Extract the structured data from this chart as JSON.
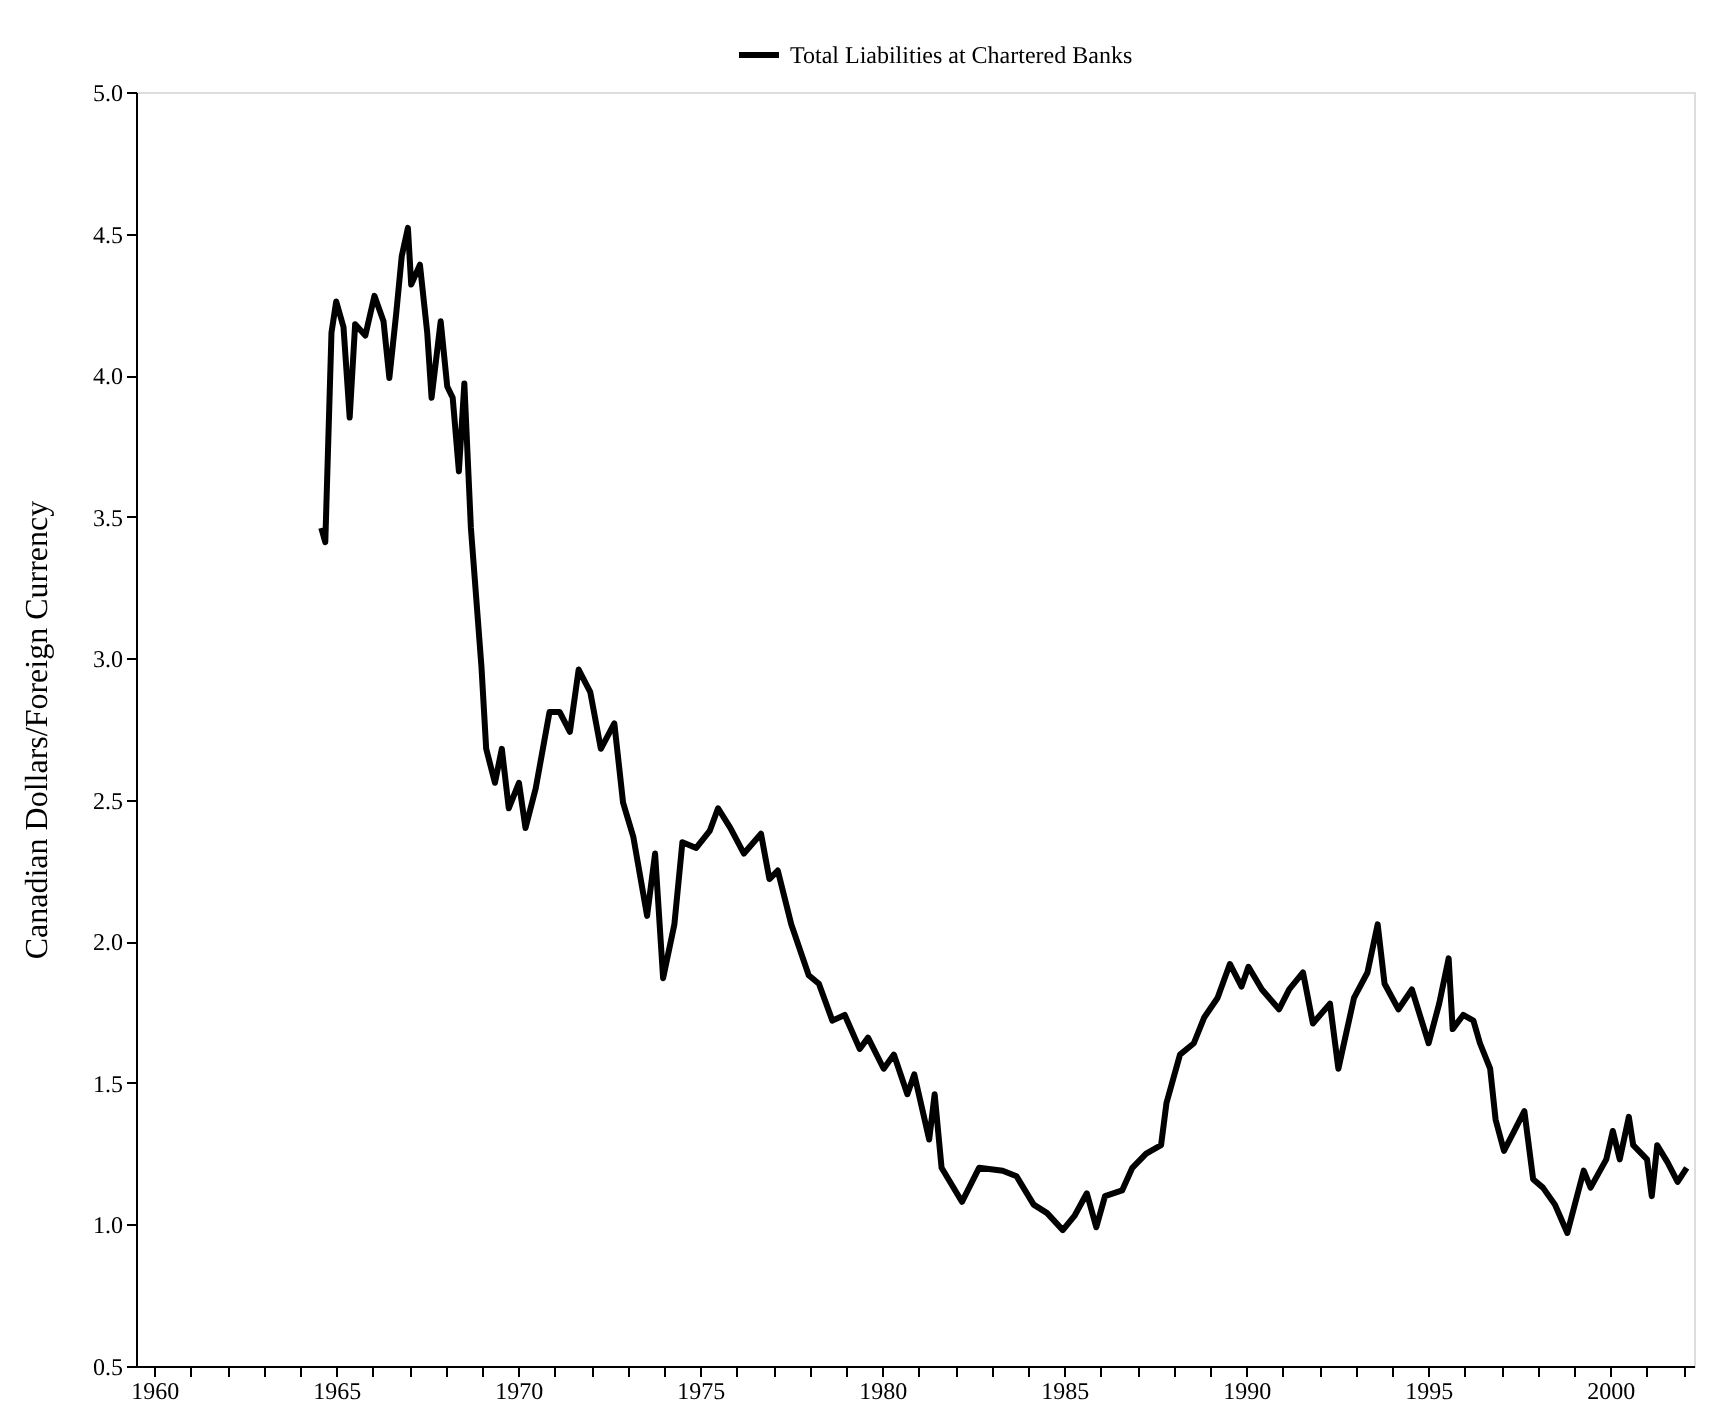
{
  "chart_data": {
    "type": "line",
    "ylabel": "Canadian Dollars/Foreign Currency",
    "legend": "top",
    "grid": false,
    "marker": "none",
    "line_style": "solid",
    "xlim": [
      1959.5,
      2002.3
    ],
    "ylim": [
      0.5,
      5.0
    ],
    "xticks": [
      1960,
      {
        "value": 1961,
        "label": null
      },
      {
        "value": 1962,
        "label": null
      },
      {
        "value": 1963,
        "label": null
      },
      {
        "value": 1964,
        "label": null
      },
      1965,
      {
        "value": 1966,
        "label": null
      },
      {
        "value": 1967,
        "label": null
      },
      {
        "value": 1968,
        "label": null
      },
      {
        "value": 1969,
        "label": null
      },
      1970,
      {
        "value": 1971,
        "label": null
      },
      {
        "value": 1972,
        "label": null
      },
      {
        "value": 1973,
        "label": null
      },
      {
        "value": 1974,
        "label": null
      },
      1975,
      {
        "value": 1976,
        "label": null
      },
      {
        "value": 1977,
        "label": null
      },
      {
        "value": 1978,
        "label": null
      },
      {
        "value": 1979,
        "label": null
      },
      1980,
      {
        "value": 1981,
        "label": null
      },
      {
        "value": 1982,
        "label": null
      },
      {
        "value": 1983,
        "label": null
      },
      {
        "value": 1984,
        "label": null
      },
      1985,
      {
        "value": 1986,
        "label": null
      },
      {
        "value": 1987,
        "label": null
      },
      {
        "value": 1988,
        "label": null
      },
      {
        "value": 1989,
        "label": null
      },
      1990,
      {
        "value": 1991,
        "label": null
      },
      {
        "value": 1992,
        "label": null
      },
      {
        "value": 1993,
        "label": null
      },
      {
        "value": 1994,
        "label": null
      },
      1995,
      {
        "value": 1996,
        "label": null
      },
      {
        "value": 1997,
        "label": null
      },
      {
        "value": 1998,
        "label": null
      },
      {
        "value": 1999,
        "label": null
      },
      2000,
      {
        "value": 2001,
        "label": null
      },
      {
        "value": 2002,
        "label": null
      }
    ],
    "yticks": [
      0.5,
      {
        "value": 1,
        "label": "1.0"
      },
      1.5,
      {
        "value": 2,
        "label": "2.0"
      },
      2.5,
      {
        "value": 3,
        "label": "3.0"
      },
      3.5,
      {
        "value": 4,
        "label": "4.0"
      },
      4.5,
      {
        "value": 5,
        "label": "5.0"
      }
    ],
    "x": [
      1964.59,
      1964.7,
      1964.87,
      1965.0,
      1965.2,
      1965.37,
      1965.52,
      1965.8,
      1966.05,
      1966.3,
      1966.46,
      1966.65,
      1966.8,
      1966.97,
      1967.06,
      1967.3,
      1967.5,
      1967.62,
      1967.87,
      1968.05,
      1968.2,
      1968.37,
      1968.52,
      1968.7,
      1968.99,
      1969.12,
      1969.36,
      1969.55,
      1969.74,
      1970.02,
      1970.2,
      1970.48,
      1970.86,
      1971.14,
      1971.42,
      1971.66,
      1971.98,
      1972.27,
      1972.64,
      1972.88,
      1973.16,
      1973.54,
      1973.76,
      1973.98,
      1974.29,
      1974.51,
      1974.89,
      1975.26,
      1975.49,
      1975.83,
      1976.2,
      1976.67,
      1976.9,
      1977.13,
      1977.5,
      1977.98,
      1978.26,
      1978.63,
      1978.97,
      1979.38,
      1979.61,
      1980.04,
      1980.32,
      1980.69,
      1980.88,
      1981.29,
      1981.44,
      1981.63,
      1982.19,
      1982.66,
      1983.31,
      1983.69,
      1984.16,
      1984.53,
      1984.96,
      1985.28,
      1985.62,
      1985.88,
      1986.12,
      1986.59,
      1986.87,
      1987.25,
      1987.66,
      1987.81,
      1988.18,
      1988.56,
      1988.84,
      1989.21,
      1989.55,
      1989.87,
      1990.06,
      1990.43,
      1990.9,
      1991.18,
      1991.56,
      1991.83,
      1992.3,
      1992.53,
      1992.96,
      1993.33,
      1993.61,
      1993.8,
      1994.18,
      1994.55,
      1995.01,
      1995.3,
      1995.56,
      1995.67,
      1995.96,
      1996.24,
      1996.42,
      1996.7,
      1996.85,
      1997.08,
      1997.36,
      1997.64,
      1997.88,
      1998.15,
      1998.48,
      1998.82,
      1999.27,
      1999.46,
      1999.89,
      2000.07,
      2000.26,
      2000.51,
      2000.63,
      2001.01,
      2001.14,
      2001.29,
      2001.57,
      2001.85,
      2002.1
    ],
    "series": [
      {
        "name": "Total Liabilities at Chartered Banks",
        "color": "#000000",
        "values": [
          3.46,
          3.41,
          4.15,
          4.26,
          4.17,
          3.85,
          4.18,
          4.14,
          4.28,
          4.19,
          3.99,
          4.22,
          4.42,
          4.52,
          4.32,
          4.39,
          4.15,
          3.92,
          4.19,
          3.96,
          3.92,
          3.66,
          3.97,
          3.46,
          2.97,
          2.68,
          2.56,
          2.68,
          2.47,
          2.56,
          2.4,
          2.54,
          2.81,
          2.81,
          2.74,
          2.96,
          2.88,
          2.68,
          2.77,
          2.49,
          2.37,
          2.09,
          2.31,
          1.87,
          2.06,
          2.35,
          2.33,
          2.39,
          2.47,
          2.4,
          2.31,
          2.38,
          2.22,
          2.25,
          2.06,
          1.88,
          1.85,
          1.72,
          1.74,
          1.62,
          1.66,
          1.55,
          1.6,
          1.46,
          1.53,
          1.3,
          1.46,
          1.2,
          1.08,
          1.2,
          1.19,
          1.17,
          1.07,
          1.04,
          0.98,
          1.03,
          1.11,
          0.99,
          1.1,
          1.12,
          1.2,
          1.25,
          1.28,
          1.43,
          1.6,
          1.64,
          1.73,
          1.8,
          1.92,
          1.84,
          1.91,
          1.83,
          1.76,
          1.83,
          1.89,
          1.71,
          1.78,
          1.55,
          1.8,
          1.89,
          2.06,
          1.85,
          1.76,
          1.83,
          1.64,
          1.78,
          1.94,
          1.69,
          1.74,
          1.72,
          1.64,
          1.55,
          1.37,
          1.26,
          1.33,
          1.4,
          1.16,
          1.13,
          1.07,
          0.97,
          1.19,
          1.13,
          1.23,
          1.33,
          1.23,
          1.38,
          1.28,
          1.23,
          1.1,
          1.28,
          1.22,
          1.15,
          1.2
        ]
      }
    ]
  }
}
